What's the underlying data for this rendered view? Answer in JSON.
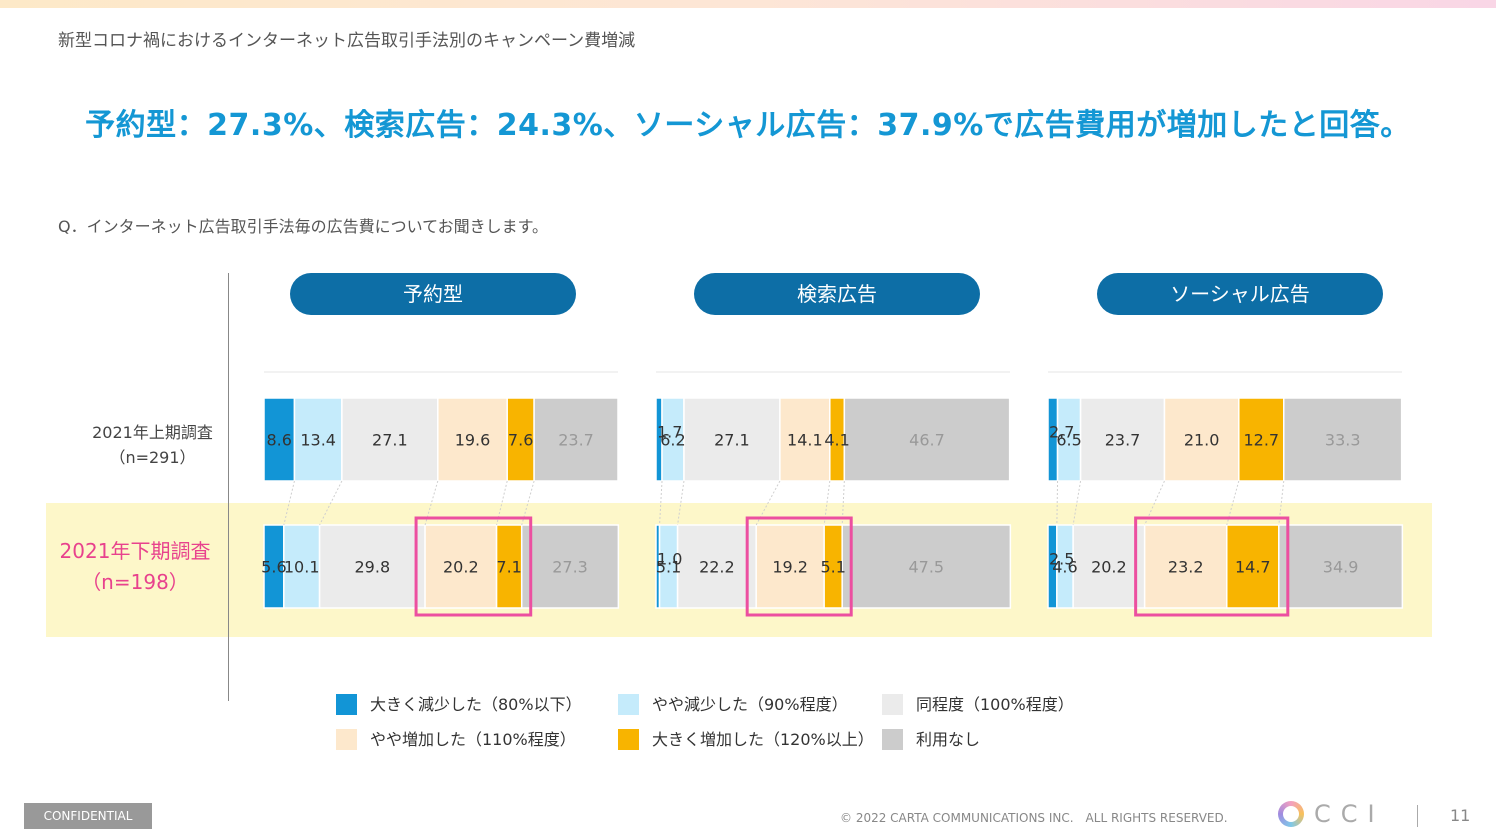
{
  "page_heading": "新型コロナ禍におけるインターネット広告取引手法別のキャンペーン費増減",
  "headline": "予約型：27.3%、検索広告：24.3%、ソーシャル広告：37.9%で広告費用が増加したと回答。",
  "question": "Q．インターネット広告取引手法毎の広告費についてお聞きします。",
  "row_labels": [
    {
      "line1": "2021年上期調査",
      "line2": "（n=291）"
    },
    {
      "line1": "2021年下期調査",
      "line2": "（n=198）"
    }
  ],
  "legend": [
    {
      "label": "大きく減少した（80%以下）",
      "color": "#1295d6"
    },
    {
      "label": "やや減少した（90%程度）",
      "color": "#c5ebfb"
    },
    {
      "label": "同程度（100%程度）",
      "color": "#ebebeb"
    },
    {
      "label": "やや増加した（110%程度）",
      "color": "#fde8cc"
    },
    {
      "label": "大きく増加した（120%以上）",
      "color": "#f8b400"
    },
    {
      "label": "利用なし",
      "color": "#cccccc"
    }
  ],
  "footer": {
    "confidential": "CONFIDENTIAL",
    "copyright": "© 2022 CARTA COMMUNICATIONS INC.　ALL RIGHTS RESERVED.",
    "logo_text": "CCI",
    "page_number": "11"
  },
  "chart_data": [
    {
      "type": "bar",
      "orientation": "horizontal-stacked-100",
      "title": "予約型",
      "categories": [
        "2021年上期調査",
        "2021年下期調査"
      ],
      "xlim": [
        0,
        100
      ],
      "highlighted_series": [
        "やや増加した（110%程度）",
        "大きく増加した（120%以上）"
      ],
      "series": [
        {
          "name": "大きく減少した（80%以下）",
          "values": [
            8.6,
            5.6
          ]
        },
        {
          "name": "やや減少した（90%程度）",
          "values": [
            13.4,
            10.1
          ]
        },
        {
          "name": "同程度（100%程度）",
          "values": [
            27.1,
            29.8
          ]
        },
        {
          "name": "やや増加した（110%程度）",
          "values": [
            19.6,
            20.2
          ]
        },
        {
          "name": "大きく増加した（120%以上）",
          "values": [
            7.6,
            7.1
          ]
        },
        {
          "name": "利用なし",
          "values": [
            23.7,
            27.3
          ]
        }
      ]
    },
    {
      "type": "bar",
      "orientation": "horizontal-stacked-100",
      "title": "検索広告",
      "categories": [
        "2021年上期調査",
        "2021年下期調査"
      ],
      "xlim": [
        0,
        100
      ],
      "highlighted_series": [
        "やや増加した（110%程度）",
        "大きく増加した（120%以上）"
      ],
      "series": [
        {
          "name": "大きく減少した（80%以下）",
          "values": [
            1.7,
            1.0
          ]
        },
        {
          "name": "やや減少した（90%程度）",
          "values": [
            6.2,
            5.1
          ]
        },
        {
          "name": "同程度（100%程度）",
          "values": [
            27.1,
            22.2
          ]
        },
        {
          "name": "やや増加した（110%程度）",
          "values": [
            14.1,
            19.2
          ]
        },
        {
          "name": "大きく増加した（120%以上）",
          "values": [
            4.1,
            5.1
          ]
        },
        {
          "name": "利用なし",
          "values": [
            46.7,
            47.5
          ]
        }
      ]
    },
    {
      "type": "bar",
      "orientation": "horizontal-stacked-100",
      "title": "ソーシャル広告",
      "categories": [
        "2021年上期調査",
        "2021年下期調査"
      ],
      "xlim": [
        0,
        100
      ],
      "highlighted_series": [
        "やや増加した（110%程度）",
        "大きく増加した（120%以上）"
      ],
      "series": [
        {
          "name": "大きく減少した（80%以下）",
          "values": [
            2.7,
            2.5
          ]
        },
        {
          "name": "やや減少した（90%程度）",
          "values": [
            6.5,
            4.6
          ]
        },
        {
          "name": "同程度（100%程度）",
          "values": [
            23.7,
            20.2
          ]
        },
        {
          "name": "やや増加した（110%程度）",
          "values": [
            21.0,
            23.2
          ]
        },
        {
          "name": "大きく増加した（120%以上）",
          "values": [
            12.7,
            14.7
          ]
        },
        {
          "name": "利用なし",
          "values": [
            33.3,
            34.9
          ]
        }
      ]
    }
  ]
}
